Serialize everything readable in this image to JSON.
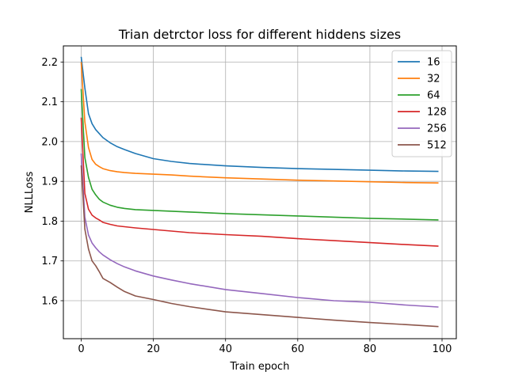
{
  "chart_data": {
    "type": "line",
    "title": "Trian detrctor loss for different hiddens sizes",
    "xlabel": "Train epoch",
    "ylabel": "NLLLoss",
    "xlim": [
      -4.95,
      103.95
    ],
    "ylim": [
      1.5045,
      2.2405
    ],
    "xticks": [
      0,
      20,
      40,
      60,
      80,
      100
    ],
    "yticks": [
      1.6,
      1.7,
      1.8,
      1.9,
      2.0,
      2.1,
      2.2
    ],
    "ytick_labels": [
      "1.6",
      "1.7",
      "1.8",
      "1.9",
      "2.0",
      "2.1",
      "2.2"
    ],
    "grid": true,
    "legend_position": "upper right",
    "x": [
      0,
      1,
      2,
      3,
      4,
      5,
      6,
      8,
      10,
      12,
      15,
      20,
      25,
      30,
      40,
      50,
      60,
      70,
      80,
      90,
      99
    ],
    "series": [
      {
        "name": "16",
        "color": "#1f77b4",
        "values": [
          2.213,
          2.135,
          2.07,
          2.045,
          2.03,
          2.02,
          2.01,
          1.997,
          1.987,
          1.98,
          1.97,
          1.957,
          1.95,
          1.945,
          1.939,
          1.935,
          1.932,
          1.93,
          1.928,
          1.926,
          1.925
        ]
      },
      {
        "name": "32",
        "color": "#ff7f0e",
        "values": [
          2.2,
          2.05,
          1.985,
          1.955,
          1.943,
          1.937,
          1.932,
          1.927,
          1.924,
          1.922,
          1.92,
          1.918,
          1.916,
          1.913,
          1.909,
          1.906,
          1.903,
          1.901,
          1.899,
          1.897,
          1.896
        ]
      },
      {
        "name": "64",
        "color": "#2ca02c",
        "values": [
          2.132,
          1.96,
          1.91,
          1.88,
          1.866,
          1.855,
          1.848,
          1.84,
          1.835,
          1.832,
          1.829,
          1.827,
          1.825,
          1.823,
          1.819,
          1.816,
          1.813,
          1.81,
          1.807,
          1.805,
          1.803
        ]
      },
      {
        "name": "128",
        "color": "#d62728",
        "values": [
          2.06,
          1.87,
          1.83,
          1.815,
          1.808,
          1.803,
          1.797,
          1.792,
          1.788,
          1.786,
          1.783,
          1.779,
          1.775,
          1.771,
          1.766,
          1.762,
          1.756,
          1.751,
          1.746,
          1.741,
          1.737
        ]
      },
      {
        "name": "256",
        "color": "#9467bd",
        "values": [
          1.97,
          1.81,
          1.765,
          1.745,
          1.733,
          1.723,
          1.715,
          1.703,
          1.693,
          1.685,
          1.675,
          1.662,
          1.652,
          1.643,
          1.628,
          1.618,
          1.608,
          1.6,
          1.596,
          1.589,
          1.584
        ]
      },
      {
        "name": "512",
        "color": "#8c564b",
        "values": [
          1.94,
          1.78,
          1.73,
          1.7,
          1.688,
          1.673,
          1.656,
          1.646,
          1.634,
          1.623,
          1.612,
          1.603,
          1.593,
          1.585,
          1.572,
          1.565,
          1.558,
          1.551,
          1.545,
          1.54,
          1.535
        ]
      }
    ]
  }
}
